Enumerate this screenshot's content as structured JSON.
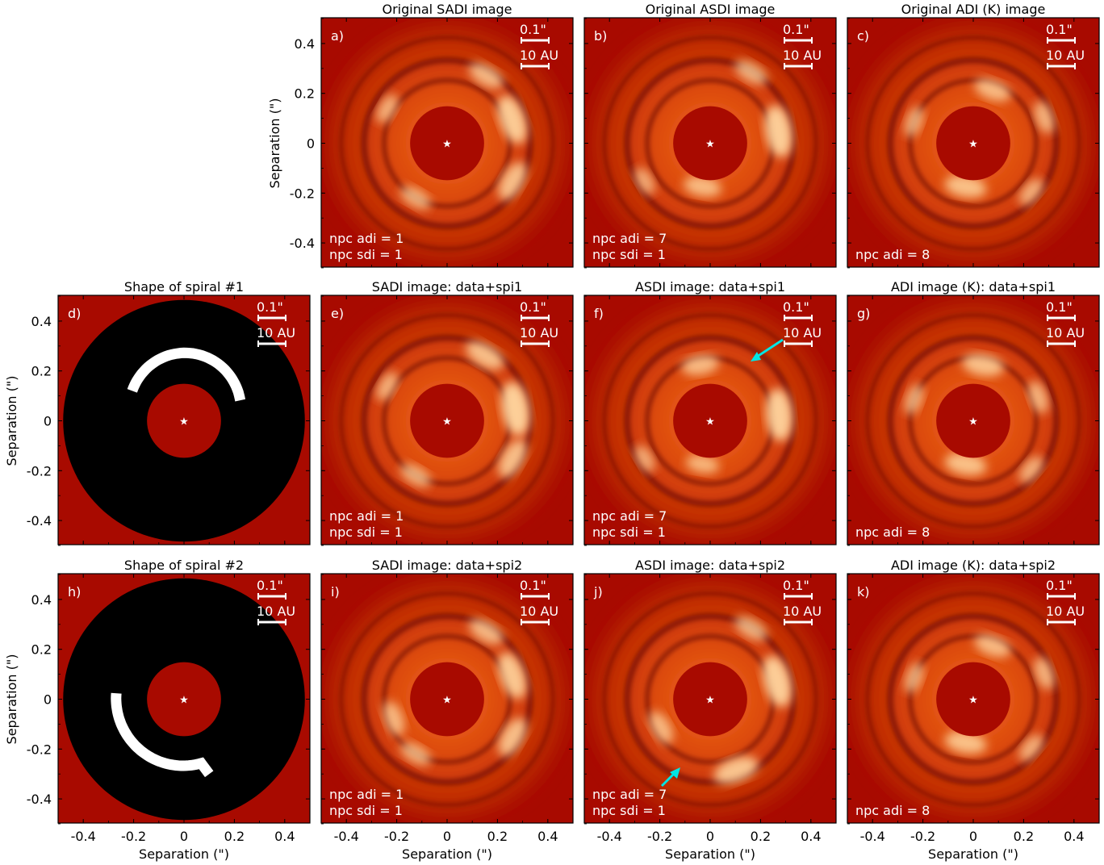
{
  "figure": {
    "axis_label": "Separation (\")",
    "ticks": [
      -0.4,
      -0.2,
      0,
      0.2,
      0.4
    ],
    "tick_labels": [
      "-0.4",
      "-0.2",
      "0",
      "0.2",
      "0.4"
    ],
    "scalebar": {
      "arcsec": "0.1\"",
      "au": "10 AU"
    },
    "star_glyph": "star-icon",
    "colors": {
      "background_red": "#a80a00",
      "shape_black": "#000000",
      "spiral_white": "#ffffff",
      "arrow": "#00e5e5"
    }
  },
  "panels": [
    {
      "id": "a",
      "letter": "a)",
      "title": "Original SADI image",
      "kind": "image",
      "notes": [
        "npc adi = 1",
        "npc sdi = 1"
      ]
    },
    {
      "id": "b",
      "letter": "b)",
      "title": "Original ASDI image",
      "kind": "image",
      "notes": [
        "npc adi = 7",
        "npc sdi = 1"
      ]
    },
    {
      "id": "c",
      "letter": "c)",
      "title": "Original ADI (K) image",
      "kind": "image",
      "notes": [
        "npc adi = 8"
      ]
    },
    {
      "id": "d",
      "letter": "d)",
      "title": "Shape of spiral #1",
      "kind": "shape",
      "notes": []
    },
    {
      "id": "e",
      "letter": "e)",
      "title": "SADI image: data+spi1",
      "kind": "image",
      "notes": [
        "npc adi = 1",
        "npc sdi = 1"
      ]
    },
    {
      "id": "f",
      "letter": "f)",
      "title": "ASDI image: data+spi1",
      "kind": "image",
      "notes": [
        "npc adi = 7",
        "npc sdi = 1"
      ]
    },
    {
      "id": "g",
      "letter": "g)",
      "title": "ADI image (K): data+spi1",
      "kind": "image",
      "notes": [
        "npc adi = 8"
      ]
    },
    {
      "id": "h",
      "letter": "h)",
      "title": "Shape of spiral #2",
      "kind": "shape",
      "notes": []
    },
    {
      "id": "i",
      "letter": "i)",
      "title": "SADI image: data+spi2",
      "kind": "image",
      "notes": [
        "npc adi = 1",
        "npc sdi = 1"
      ]
    },
    {
      "id": "j",
      "letter": "j)",
      "title": "ASDI image: data+spi2",
      "kind": "image",
      "notes": [
        "npc adi = 7",
        "npc sdi = 1"
      ]
    },
    {
      "id": "k",
      "letter": "k)",
      "title": "ADI image (K): data+spi2",
      "kind": "image",
      "notes": [
        "npc adi = 8"
      ]
    }
  ]
}
